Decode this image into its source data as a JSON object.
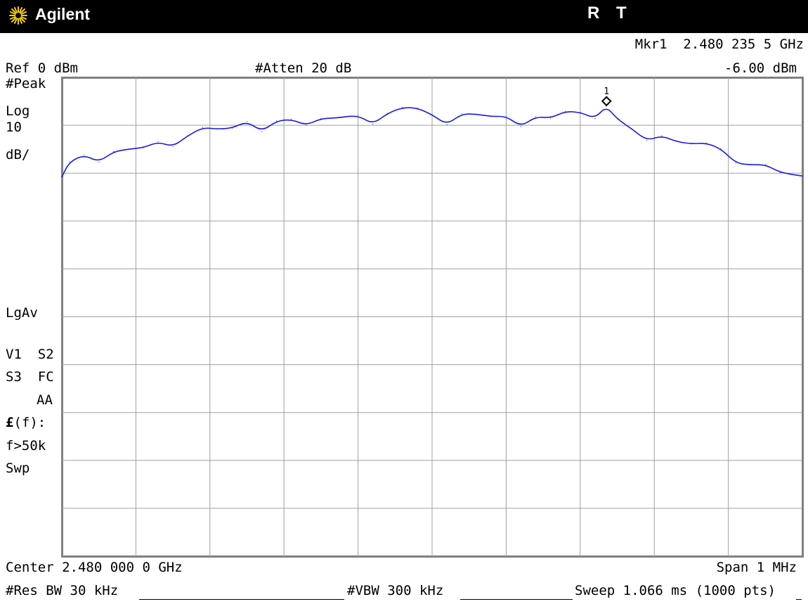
{
  "header": {
    "brand": "Agilent",
    "flag_r": "R",
    "flag_t": "T",
    "marker_readout": "Mkr1  2.480 235 5 GHz"
  },
  "status": {
    "ref_level": "Ref 0 dBm",
    "attenuation": "#Atten 20 dB",
    "marker_value": "-6.00 dBm"
  },
  "side_labels": {
    "detector": "#Peak",
    "scale_type": "Log",
    "scale_value": "10",
    "scale_unit": "dB/",
    "avg_mode": "LgAv",
    "v1_s2": "V1  S2",
    "s3_fc": "S3  FC",
    "aa": "AA",
    "ff": "(f):",
    "ff_symbol": "£",
    "f_gt": "f>50k",
    "swp": "Swp"
  },
  "footer": {
    "center": "Center 2.480 000 0 GHz",
    "span": "Span 1 MHz",
    "res_bw": "#Res BW 30 kHz",
    "vbw": "#VBW 300 kHz",
    "sweep": "Sweep 1.066 ms (1000 pts)"
  },
  "colors": {
    "trace": "#1a1ae6",
    "grid": "#a0a0a0",
    "frame": "#808080",
    "topbar": "#000000"
  },
  "chart_data": {
    "type": "line",
    "title": "",
    "xlabel": "",
    "ylabel": "",
    "xlim": [
      2.4795,
      2.4805
    ],
    "ylim": [
      -100,
      0
    ],
    "x_unit": "GHz",
    "y_unit": "dBm",
    "log_scale_per_div": 10,
    "grid": true,
    "series": [
      {
        "x": [
          2.4795,
          2.47951,
          2.47953,
          2.47955,
          2.47957,
          2.47959,
          2.47961,
          2.47963,
          2.47965,
          2.47967,
          2.47969,
          2.47971,
          2.47973,
          2.47975,
          2.47977,
          2.47979,
          2.47981,
          2.47983,
          2.47985,
          2.47987,
          2.4799,
          2.47992,
          2.47994,
          2.47996,
          2.47998,
          2.48,
          2.48002,
          2.48004,
          2.48006,
          2.48008,
          2.4801,
          2.48012,
          2.48014,
          2.48016,
          2.48018,
          2.4802,
          2.48022,
          2.480235,
          2.48025,
          2.48027,
          2.48029,
          2.48031,
          2.48033,
          2.48035,
          2.48037,
          2.48039,
          2.48041,
          2.48043,
          2.48045,
          2.48047,
          2.4805
        ],
        "values": [
          -20.8,
          -17.7,
          -16.2,
          -17.7,
          -15.5,
          -15.0,
          -14.7,
          -13.5,
          -14.5,
          -12.2,
          -10.5,
          -10.8,
          -10.6,
          -9.2,
          -11.3,
          -9.1,
          -8.8,
          -10.0,
          -8.6,
          -8.5,
          -7.9,
          -9.8,
          -7.5,
          -6.3,
          -6.4,
          -7.8,
          -9.9,
          -7.6,
          -7.7,
          -8.2,
          -8.1,
          -10.3,
          -8.2,
          -8.5,
          -7.1,
          -7.3,
          -8.6,
          -6.0,
          -8.7,
          -10.8,
          -13.2,
          -12.2,
          -13.4,
          -13.9,
          -13.7,
          -14.9,
          -17.9,
          -18.3,
          -18.2,
          -19.9,
          -20.6
        ]
      }
    ],
    "marker": {
      "label": "1",
      "x": 2.4802355,
      "y": -6.0
    }
  }
}
